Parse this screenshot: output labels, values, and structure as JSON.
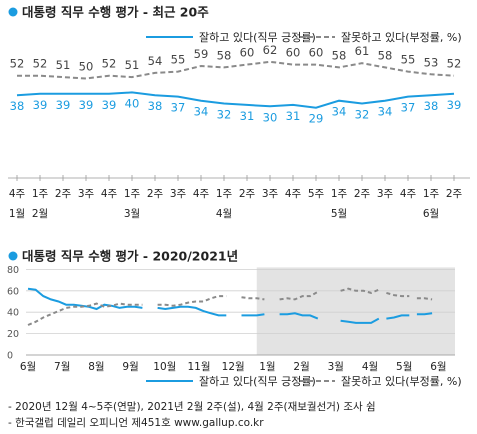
{
  "colors": {
    "approve": "#1b9ce0",
    "disapprove": "#8a8a8a",
    "accent": "#1b9ce0"
  },
  "chart_data": [
    {
      "type": "line",
      "title": "대통령 직무 수행 평가 - 최근 20주",
      "x_labels": [
        "4주",
        "1주",
        "2주",
        "3주",
        "4주",
        "1주",
        "2주",
        "3주",
        "4주",
        "1주",
        "2주",
        "3주",
        "4주",
        "5주",
        "1주",
        "2주",
        "3주",
        "4주",
        "1주",
        "2주"
      ],
      "month_labels": [
        "1월",
        "2월",
        "",
        "",
        "",
        "3월",
        "",
        "",
        "",
        "4월",
        "",
        "",
        "",
        "",
        "5월",
        "",
        "",
        "",
        "6월",
        ""
      ],
      "series": [
        {
          "name": "잘하고 있다(직무 긍정률)",
          "values": [
            38,
            39,
            39,
            39,
            39,
            40,
            38,
            37,
            34,
            32,
            31,
            30,
            31,
            29,
            34,
            32,
            34,
            37,
            38,
            39
          ]
        },
        {
          "name": "잘못하고 있다(부정률, %)",
          "values": [
            52,
            52,
            51,
            50,
            52,
            51,
            54,
            55,
            59,
            58,
            60,
            62,
            60,
            60,
            58,
            61,
            58,
            55,
            53,
            52
          ]
        }
      ],
      "ylim": [
        0,
        100
      ],
      "legend": "top-right"
    },
    {
      "type": "line",
      "title": "대통령 직무 수행 평가 - 2020/2021년",
      "x_labels": [
        "6월",
        "7월",
        "8월",
        "9월",
        "10월",
        "11월",
        "12월",
        "1월",
        "2월",
        "3월",
        "4월",
        "5월",
        "6월"
      ],
      "yticks": [
        0,
        20,
        40,
        60,
        80
      ],
      "ylim": [
        0,
        80
      ],
      "x_range": [
        0,
        56
      ],
      "shaded_x_range": [
        30,
        56
      ],
      "series": [
        {
          "name": "잘하고 있다(직무 긍정률)",
          "segments": [
            [
              [
                0,
                62
              ],
              [
                1,
                61
              ],
              [
                2,
                55
              ],
              [
                3,
                52
              ],
              [
                4,
                50
              ],
              [
                5,
                47
              ],
              [
                6,
                47
              ],
              [
                7,
                46
              ],
              [
                8,
                45
              ],
              [
                9,
                43
              ],
              [
                10,
                47
              ],
              [
                11,
                46
              ],
              [
                12,
                44
              ],
              [
                13,
                45
              ],
              [
                14,
                45
              ],
              [
                15,
                44
              ]
            ],
            [
              [
                17,
                44
              ],
              [
                18,
                43
              ],
              [
                19,
                44
              ],
              [
                20,
                45
              ],
              [
                21,
                45
              ],
              [
                22,
                44
              ],
              [
                23,
                41
              ],
              [
                24,
                39
              ],
              [
                25,
                37
              ],
              [
                26,
                37
              ]
            ],
            [
              [
                28,
                37
              ],
              [
                29,
                37
              ],
              [
                30,
                37
              ],
              [
                31,
                38
              ]
            ],
            [
              [
                33,
                38
              ],
              [
                34,
                38
              ],
              [
                35,
                39
              ],
              [
                36,
                37
              ],
              [
                37,
                37
              ],
              [
                38,
                34
              ]
            ],
            [
              [
                41,
                32
              ],
              [
                42,
                31
              ],
              [
                43,
                30
              ],
              [
                44,
                30
              ],
              [
                45,
                30
              ],
              [
                46,
                34
              ]
            ],
            [
              [
                47,
                34
              ],
              [
                48,
                35
              ],
              [
                49,
                37
              ],
              [
                50,
                37
              ]
            ],
            [
              [
                51,
                38
              ],
              [
                52,
                38
              ],
              [
                53,
                39
              ]
            ]
          ]
        },
        {
          "name": "잘못하고 있다(부정률, %)",
          "segments": [
            [
              [
                0,
                28
              ],
              [
                1,
                31
              ],
              [
                2,
                35
              ],
              [
                3,
                38
              ],
              [
                4,
                41
              ],
              [
                5,
                44
              ],
              [
                6,
                45
              ],
              [
                7,
                45
              ],
              [
                8,
                46
              ],
              [
                9,
                48
              ],
              [
                10,
                45
              ],
              [
                11,
                46
              ],
              [
                12,
                48
              ],
              [
                13,
                47
              ],
              [
                14,
                47
              ],
              [
                15,
                47
              ]
            ],
            [
              [
                17,
                47
              ],
              [
                18,
                47
              ],
              [
                19,
                46
              ],
              [
                20,
                47
              ],
              [
                21,
                49
              ],
              [
                22,
                50
              ],
              [
                23,
                50
              ],
              [
                24,
                53
              ],
              [
                25,
                55
              ],
              [
                26,
                55
              ]
            ],
            [
              [
                28,
                54
              ],
              [
                29,
                53
              ],
              [
                30,
                53
              ],
              [
                31,
                52
              ]
            ],
            [
              [
                33,
                52
              ],
              [
                34,
                53
              ],
              [
                35,
                52
              ],
              [
                36,
                55
              ],
              [
                37,
                55
              ],
              [
                38,
                59
              ]
            ],
            [
              [
                41,
                60
              ],
              [
                42,
                62
              ],
              [
                43,
                60
              ],
              [
                44,
                60
              ],
              [
                45,
                58
              ],
              [
                46,
                61
              ]
            ],
            [
              [
                47,
                58
              ],
              [
                48,
                56
              ],
              [
                49,
                55
              ],
              [
                50,
                55
              ]
            ],
            [
              [
                51,
                53
              ],
              [
                52,
                53
              ],
              [
                53,
                52
              ]
            ]
          ]
        }
      ],
      "legend": "bottom-right"
    }
  ],
  "footnotes": [
    "- 2020년 12월 4~5주(연말), 2021년 2월 2주(설), 4월 2주(재보궐선거) 조사 쉼",
    "- 한국갤럽 데일리 오피니언 제451호 www.gallup.co.kr"
  ]
}
